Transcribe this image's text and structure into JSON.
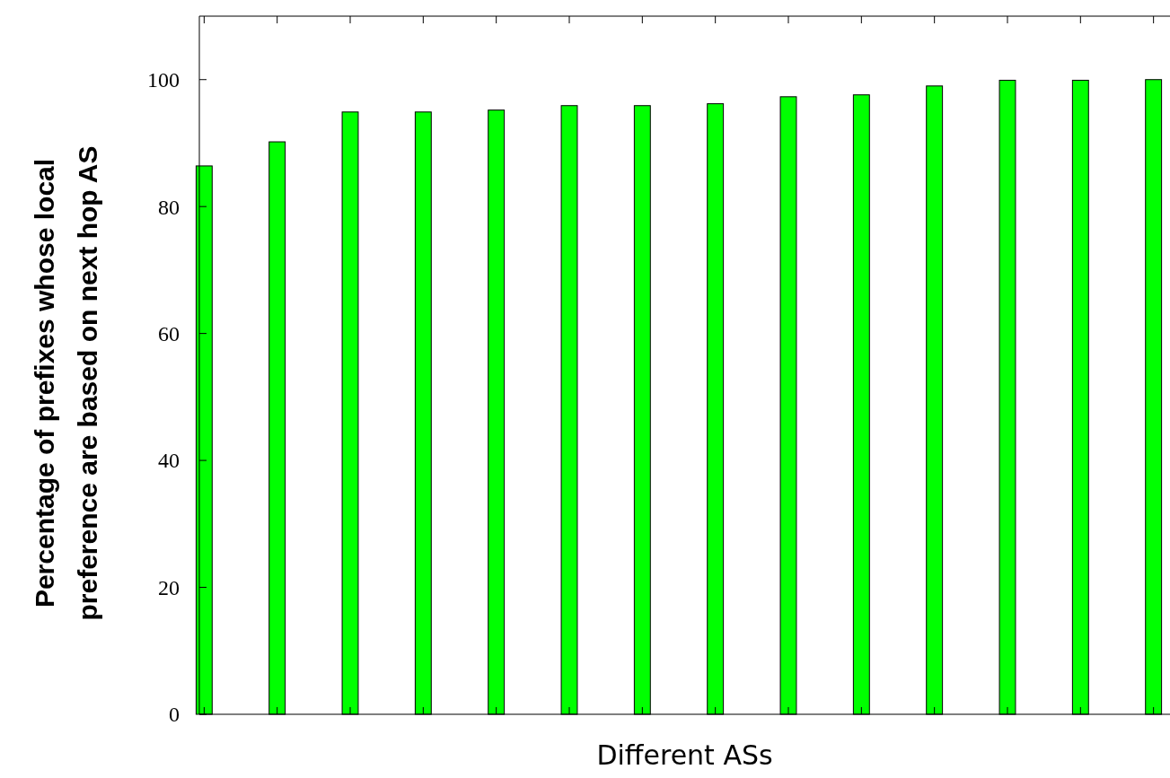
{
  "chart_data": {
    "type": "bar",
    "xlabel": "Different ASs",
    "ylabel": "Percentage of prefixes whose local\npreference are based on next hop AS",
    "categories": [
      null,
      null,
      null,
      null,
      null,
      null,
      null,
      null,
      null,
      null,
      null,
      null,
      null,
      null
    ],
    "values": [
      86.4,
      90.2,
      94.9,
      94.9,
      95.2,
      95.9,
      95.9,
      96.2,
      97.3,
      97.6,
      99.0,
      99.9,
      99.9,
      100
    ],
    "color": "#00ff00",
    "ylim": [
      0,
      110
    ],
    "yticks": [
      0,
      20,
      40,
      60,
      80,
      100
    ],
    "grid": false
  }
}
